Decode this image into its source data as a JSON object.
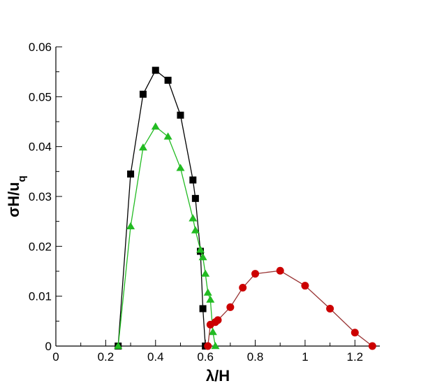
{
  "chart_data": {
    "type": "line",
    "xlabel": "λ/H",
    "ylabel": "σH/u_q",
    "xlim": [
      0,
      1.3
    ],
    "ylim": [
      0,
      0.06
    ],
    "xticks": [
      0,
      0.2,
      0.4,
      0.6,
      0.8,
      1,
      1.2
    ],
    "yticks": [
      0,
      0.01,
      0.02,
      0.03,
      0.04,
      0.05,
      0.06
    ],
    "xtick_labels": [
      "0",
      "0.2",
      "0.4",
      "0.6",
      "0.8",
      "1",
      "1.2"
    ],
    "ytick_labels": [
      "0",
      "0.01",
      "0.02",
      "0.03",
      "0.04",
      "0.05",
      "0.06"
    ],
    "grid": false,
    "legend": "none",
    "series": [
      {
        "marker": "square",
        "color": "#000000",
        "line_color": "#000000",
        "x": [
          0.25,
          0.3,
          0.35,
          0.4,
          0.45,
          0.5,
          0.55,
          0.56,
          0.58,
          0.59,
          0.6
        ],
        "y": [
          0,
          0.0345,
          0.0505,
          0.0553,
          0.0533,
          0.0463,
          0.0333,
          0.0296,
          0.019,
          0.0075,
          0
        ]
      },
      {
        "marker": "triangle",
        "color": "#22bb22",
        "line_color": "#22bb22",
        "x": [
          0.25,
          0.3,
          0.35,
          0.4,
          0.45,
          0.5,
          0.55,
          0.56,
          0.58,
          0.59,
          0.6,
          0.61,
          0.62,
          0.63,
          0.64
        ],
        "y": [
          0,
          0.024,
          0.0398,
          0.044,
          0.042,
          0.0357,
          0.0256,
          0.0232,
          0.0193,
          0.0178,
          0.0145,
          0.0107,
          0.0093,
          0.0028,
          0
        ]
      },
      {
        "marker": "circle",
        "color": "#cc0000",
        "line_color": "#993333",
        "x": [
          0.61,
          0.62,
          0.64,
          0.65,
          0.7,
          0.75,
          0.8,
          0.9,
          1.0,
          1.1,
          1.2,
          1.27
        ],
        "y": [
          0,
          0.0043,
          0.0048,
          0.0052,
          0.0078,
          0.0117,
          0.0145,
          0.0151,
          0.0121,
          0.0075,
          0.0027,
          0
        ]
      }
    ]
  }
}
